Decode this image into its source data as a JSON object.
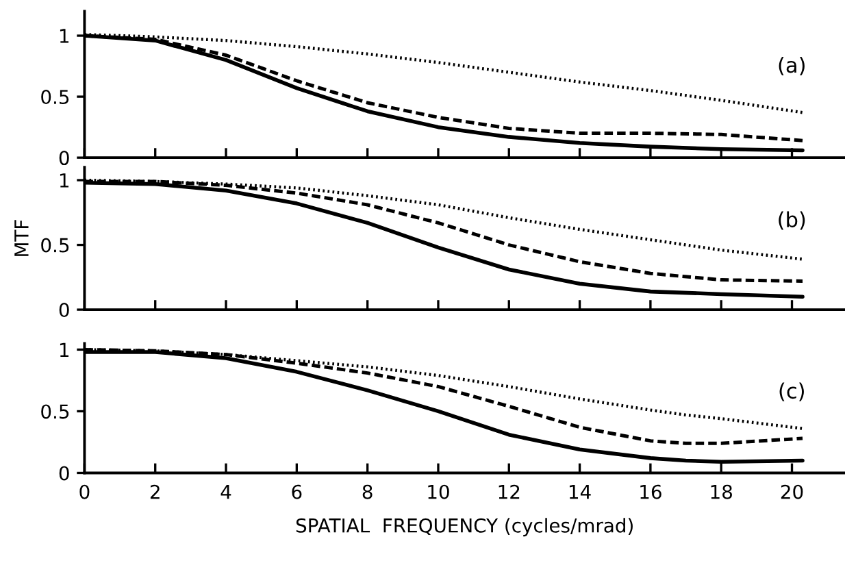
{
  "chart_data": [
    {
      "type": "line",
      "annotations": [
        "(a)"
      ],
      "xlim": [
        0,
        21.5
      ],
      "xticks": [
        {
          "value": 0,
          "label": null
        },
        {
          "value": 2,
          "label": null
        },
        {
          "value": 4,
          "label": null
        },
        {
          "value": 6,
          "label": null
        },
        {
          "value": 8,
          "label": null
        },
        {
          "value": 10,
          "label": null
        },
        {
          "value": 12,
          "label": null
        },
        {
          "value": 14,
          "label": null
        },
        {
          "value": 16,
          "label": null
        },
        {
          "value": 18,
          "label": null
        },
        {
          "value": 20,
          "label": null
        }
      ],
      "ylim": [
        0,
        1.2
      ],
      "yticks": [
        0,
        0.5,
        1
      ],
      "tick_labels": "y",
      "grid": false,
      "marker": "none",
      "x": [
        0,
        2,
        4,
        6,
        8,
        10,
        12,
        14,
        16,
        18,
        20.3
      ],
      "series": [
        {
          "color": "#000000",
          "line_style": "solid",
          "values": [
            1,
            0.96,
            0.8,
            0.57,
            0.38,
            0.25,
            0.17,
            0.12,
            0.09,
            0.07,
            0.06
          ]
        },
        {
          "color": "#000000",
          "line_style": "dashed",
          "values": [
            1,
            0.97,
            0.84,
            0.63,
            0.45,
            0.33,
            0.24,
            0.2,
            0.2,
            0.19,
            0.14
          ]
        },
        {
          "color": "#000000",
          "line_style": "dotted",
          "values": [
            1.01,
            0.99,
            0.96,
            0.91,
            0.85,
            0.78,
            0.7,
            0.62,
            0.55,
            0.47,
            0.37
          ]
        }
      ]
    },
    {
      "type": "line",
      "ylabel": "MTF",
      "annotations": [
        "(b)"
      ],
      "xlim": [
        0,
        21.5
      ],
      "xticks": [
        {
          "value": 0,
          "label": null
        },
        {
          "value": 2,
          "label": null
        },
        {
          "value": 4,
          "label": null
        },
        {
          "value": 6,
          "label": null
        },
        {
          "value": 8,
          "label": null
        },
        {
          "value": 10,
          "label": null
        },
        {
          "value": 12,
          "label": null
        },
        {
          "value": 14,
          "label": null
        },
        {
          "value": 16,
          "label": null
        },
        {
          "value": 18,
          "label": null
        },
        {
          "value": 20,
          "label": null
        }
      ],
      "ylim": [
        0,
        1.1
      ],
      "yticks": [
        0,
        0.5,
        1
      ],
      "tick_labels": "y",
      "grid": false,
      "marker": "none",
      "x": [
        0,
        2,
        4,
        6,
        8,
        10,
        12,
        14,
        16,
        18,
        20.3
      ],
      "series": [
        {
          "color": "#000000",
          "line_style": "solid",
          "values": [
            0.98,
            0.97,
            0.92,
            0.82,
            0.67,
            0.48,
            0.31,
            0.2,
            0.14,
            0.12,
            0.1
          ]
        },
        {
          "color": "#000000",
          "line_style": "dashed",
          "values": [
            0.99,
            0.99,
            0.96,
            0.9,
            0.81,
            0.67,
            0.5,
            0.37,
            0.28,
            0.23,
            0.22
          ]
        },
        {
          "color": "#000000",
          "line_style": "dotted",
          "values": [
            1,
            0.99,
            0.97,
            0.94,
            0.88,
            0.81,
            0.71,
            0.62,
            0.54,
            0.46,
            0.39
          ]
        }
      ]
    },
    {
      "type": "line",
      "xlabel": "SPATIAL  FREQUENCY (cycles/mrad)",
      "annotations": [
        "(c)"
      ],
      "xlim": [
        0,
        21.5
      ],
      "xticks": [
        0,
        2,
        4,
        6,
        8,
        10,
        12,
        14,
        16,
        18,
        20
      ],
      "ylim": [
        0,
        1.05
      ],
      "yticks": [
        0,
        0.5,
        1
      ],
      "grid": false,
      "marker": "none",
      "x": [
        0,
        2,
        4,
        6,
        8,
        10,
        12,
        14,
        16,
        17,
        18,
        20.3
      ],
      "series": [
        {
          "color": "#000000",
          "line_style": "solid",
          "values": [
            0.98,
            0.98,
            0.93,
            0.82,
            0.67,
            0.5,
            0.31,
            0.19,
            0.12,
            0.1,
            0.09,
            0.1
          ]
        },
        {
          "color": "#000000",
          "line_style": "dashed",
          "values": [
            1,
            0.99,
            0.96,
            0.89,
            0.81,
            0.7,
            0.54,
            0.37,
            0.26,
            0.24,
            0.24,
            0.28
          ]
        },
        {
          "color": "#000000",
          "line_style": "dotted",
          "values": [
            1,
            0.99,
            0.96,
            0.91,
            0.86,
            0.79,
            0.7,
            0.6,
            0.51,
            0.47,
            0.44,
            0.36
          ]
        }
      ]
    }
  ]
}
